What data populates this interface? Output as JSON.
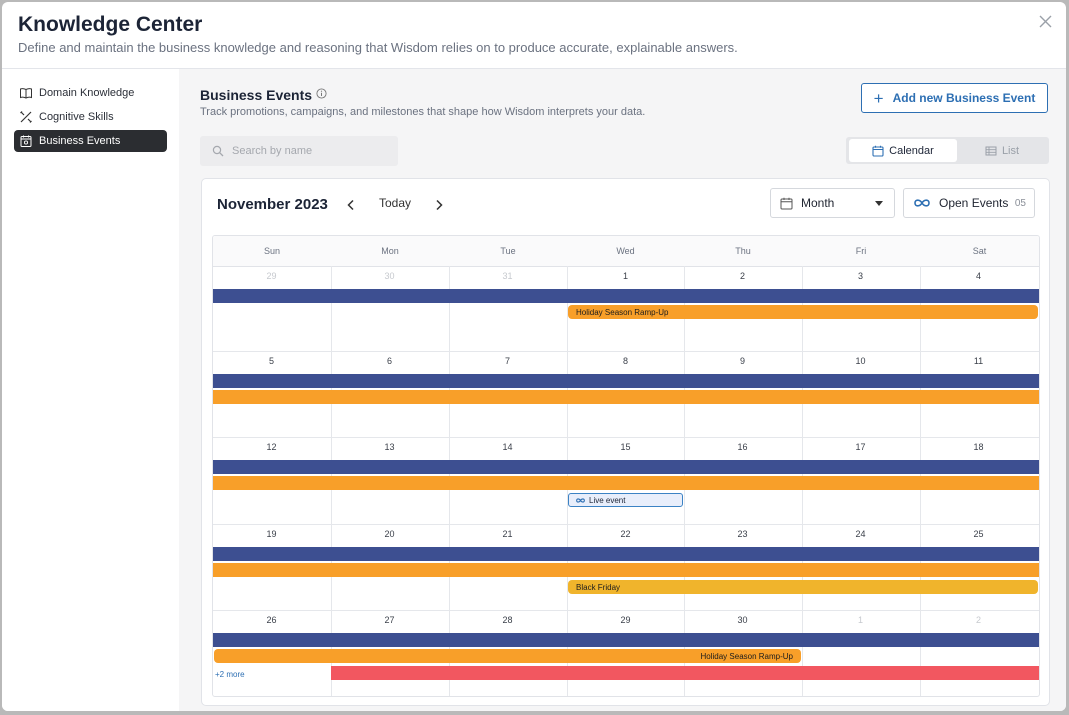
{
  "header": {
    "title": "Knowledge Center",
    "subtitle": "Define and maintain the business knowledge and reasoning that Wisdom relies on to produce accurate, explainable answers."
  },
  "sidebar": {
    "items": [
      {
        "label": "Domain Knowledge",
        "icon": "book-icon",
        "active": false
      },
      {
        "label": "Cognitive Skills",
        "icon": "tools-icon",
        "active": false
      },
      {
        "label": "Business Events",
        "icon": "calendar-event-icon",
        "active": true
      }
    ]
  },
  "main": {
    "title": "Business Events",
    "subtitle": "Track promotions, campaigns, and milestones that shape how Wisdom interprets your data.",
    "add_button": "Add new Business Event",
    "search_placeholder": "Search by name",
    "view_toggle": {
      "calendar": "Calendar",
      "list": "List",
      "selected": "Calendar"
    }
  },
  "calendar": {
    "month_label": "November 2023",
    "today_label": "Today",
    "view_select": "Month",
    "open_events_label": "Open Events",
    "open_events_count": "05",
    "weekdays": [
      "Sun",
      "Mon",
      "Tue",
      "Wed",
      "Thu",
      "Fri",
      "Sat"
    ],
    "weeks": [
      [
        {
          "d": "29",
          "m": true
        },
        {
          "d": "30",
          "m": true
        },
        {
          "d": "31",
          "m": true
        },
        {
          "d": "1"
        },
        {
          "d": "2"
        },
        {
          "d": "3"
        },
        {
          "d": "4"
        }
      ],
      [
        {
          "d": "5"
        },
        {
          "d": "6"
        },
        {
          "d": "7"
        },
        {
          "d": "8"
        },
        {
          "d": "9"
        },
        {
          "d": "10"
        },
        {
          "d": "11"
        }
      ],
      [
        {
          "d": "12"
        },
        {
          "d": "13"
        },
        {
          "d": "14"
        },
        {
          "d": "15"
        },
        {
          "d": "16"
        },
        {
          "d": "17"
        },
        {
          "d": "18"
        }
      ],
      [
        {
          "d": "19"
        },
        {
          "d": "20"
        },
        {
          "d": "21"
        },
        {
          "d": "22"
        },
        {
          "d": "23"
        },
        {
          "d": "24"
        },
        {
          "d": "25"
        }
      ],
      [
        {
          "d": "26"
        },
        {
          "d": "27"
        },
        {
          "d": "28"
        },
        {
          "d": "29"
        },
        {
          "d": "30"
        },
        {
          "d": "1",
          "m": true
        },
        {
          "d": "2",
          "m": true
        }
      ]
    ],
    "events": [
      {
        "week": 0,
        "lane": 0,
        "start": 0,
        "end": 6,
        "color": "navy",
        "label": ""
      },
      {
        "week": 0,
        "lane": 1,
        "start": 3,
        "end": 6,
        "color": "orange",
        "label": "Holiday Season Ramp-Up"
      },
      {
        "week": 1,
        "lane": 0,
        "start": 0,
        "end": 6,
        "color": "navy",
        "label": ""
      },
      {
        "week": 1,
        "lane": 1,
        "start": 0,
        "end": 6,
        "color": "orange",
        "label": ""
      },
      {
        "week": 2,
        "lane": 0,
        "start": 0,
        "end": 6,
        "color": "navy",
        "label": ""
      },
      {
        "week": 2,
        "lane": 1,
        "start": 0,
        "end": 6,
        "color": "orange",
        "label": ""
      },
      {
        "week": 2,
        "lane": 2,
        "start": 3,
        "end": 3,
        "color": "live",
        "label": "Live event"
      },
      {
        "week": 3,
        "lane": 0,
        "start": 0,
        "end": 6,
        "color": "navy",
        "label": ""
      },
      {
        "week": 3,
        "lane": 1,
        "start": 0,
        "end": 6,
        "color": "orange",
        "label": ""
      },
      {
        "week": 3,
        "lane": 2,
        "start": 3,
        "end": 6,
        "color": "yellow",
        "label": "Black Friday"
      },
      {
        "week": 4,
        "lane": 0,
        "start": 0,
        "end": 6,
        "color": "navy",
        "label": ""
      },
      {
        "week": 4,
        "lane": 1,
        "start": 0,
        "end": 4,
        "color": "orange",
        "label": "Holiday Season Ramp-Up",
        "label_align": "right"
      },
      {
        "week": 4,
        "lane": 2,
        "start": 1,
        "end": 6,
        "color": "red",
        "label": ""
      }
    ],
    "more_link": {
      "week": 4,
      "label": "+2 more"
    }
  },
  "colors": {
    "accent": "#2d6fb3",
    "navy": "#3d4f91",
    "orange": "#f89f29",
    "yellow": "#f0b42c",
    "red": "#f25760"
  }
}
